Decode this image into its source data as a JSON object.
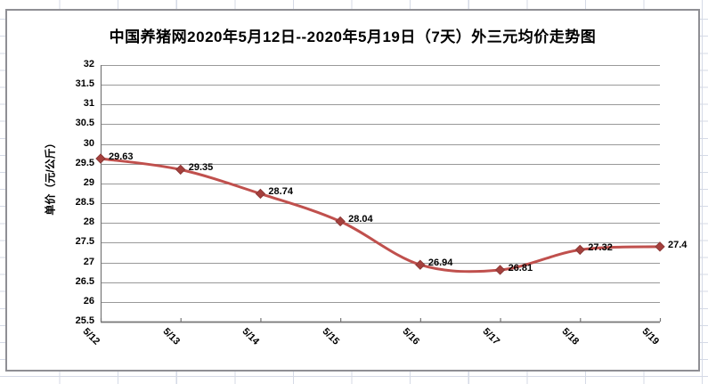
{
  "chart_data": {
    "type": "line",
    "title": "中国养猪网2020年5月12日--2020年5月19日（7天）外三元均价走势图",
    "categories": [
      "5/12",
      "5/13",
      "5/14",
      "5/15",
      "5/16",
      "5/17",
      "5/18",
      "5/19"
    ],
    "values": [
      29.63,
      29.35,
      28.74,
      28.04,
      26.94,
      26.81,
      27.32,
      27.4
    ],
    "data_labels": [
      "29.63",
      "29.35",
      "28.74",
      "28.04",
      "26.94",
      "26.81",
      "27.32",
      "27.4"
    ],
    "series_name": "外三元均价",
    "xlabel": "",
    "ylabel": "单价（元/公斤）",
    "ylim": [
      25.5,
      32
    ],
    "ytick_step": 0.5,
    "ytick_labels": [
      "32",
      "31.5",
      "31",
      "30.5",
      "30",
      "29.5",
      "29",
      "28.5",
      "28",
      "27.5",
      "27",
      "26.5",
      "26",
      "25.5"
    ],
    "grid": true,
    "legend": "none",
    "smooth": true,
    "marker": "diamond",
    "colors": {
      "line": "#C0504D",
      "marker_fill": "#A5403D",
      "marker_edge": "#8C3836",
      "gridline": "#999999",
      "axis": "#767676",
      "frame_border": "#8F8F94",
      "sheet_gridline": "#D5DAE6",
      "label_text": "#000000",
      "chart_background": "#FFFFFF"
    }
  }
}
